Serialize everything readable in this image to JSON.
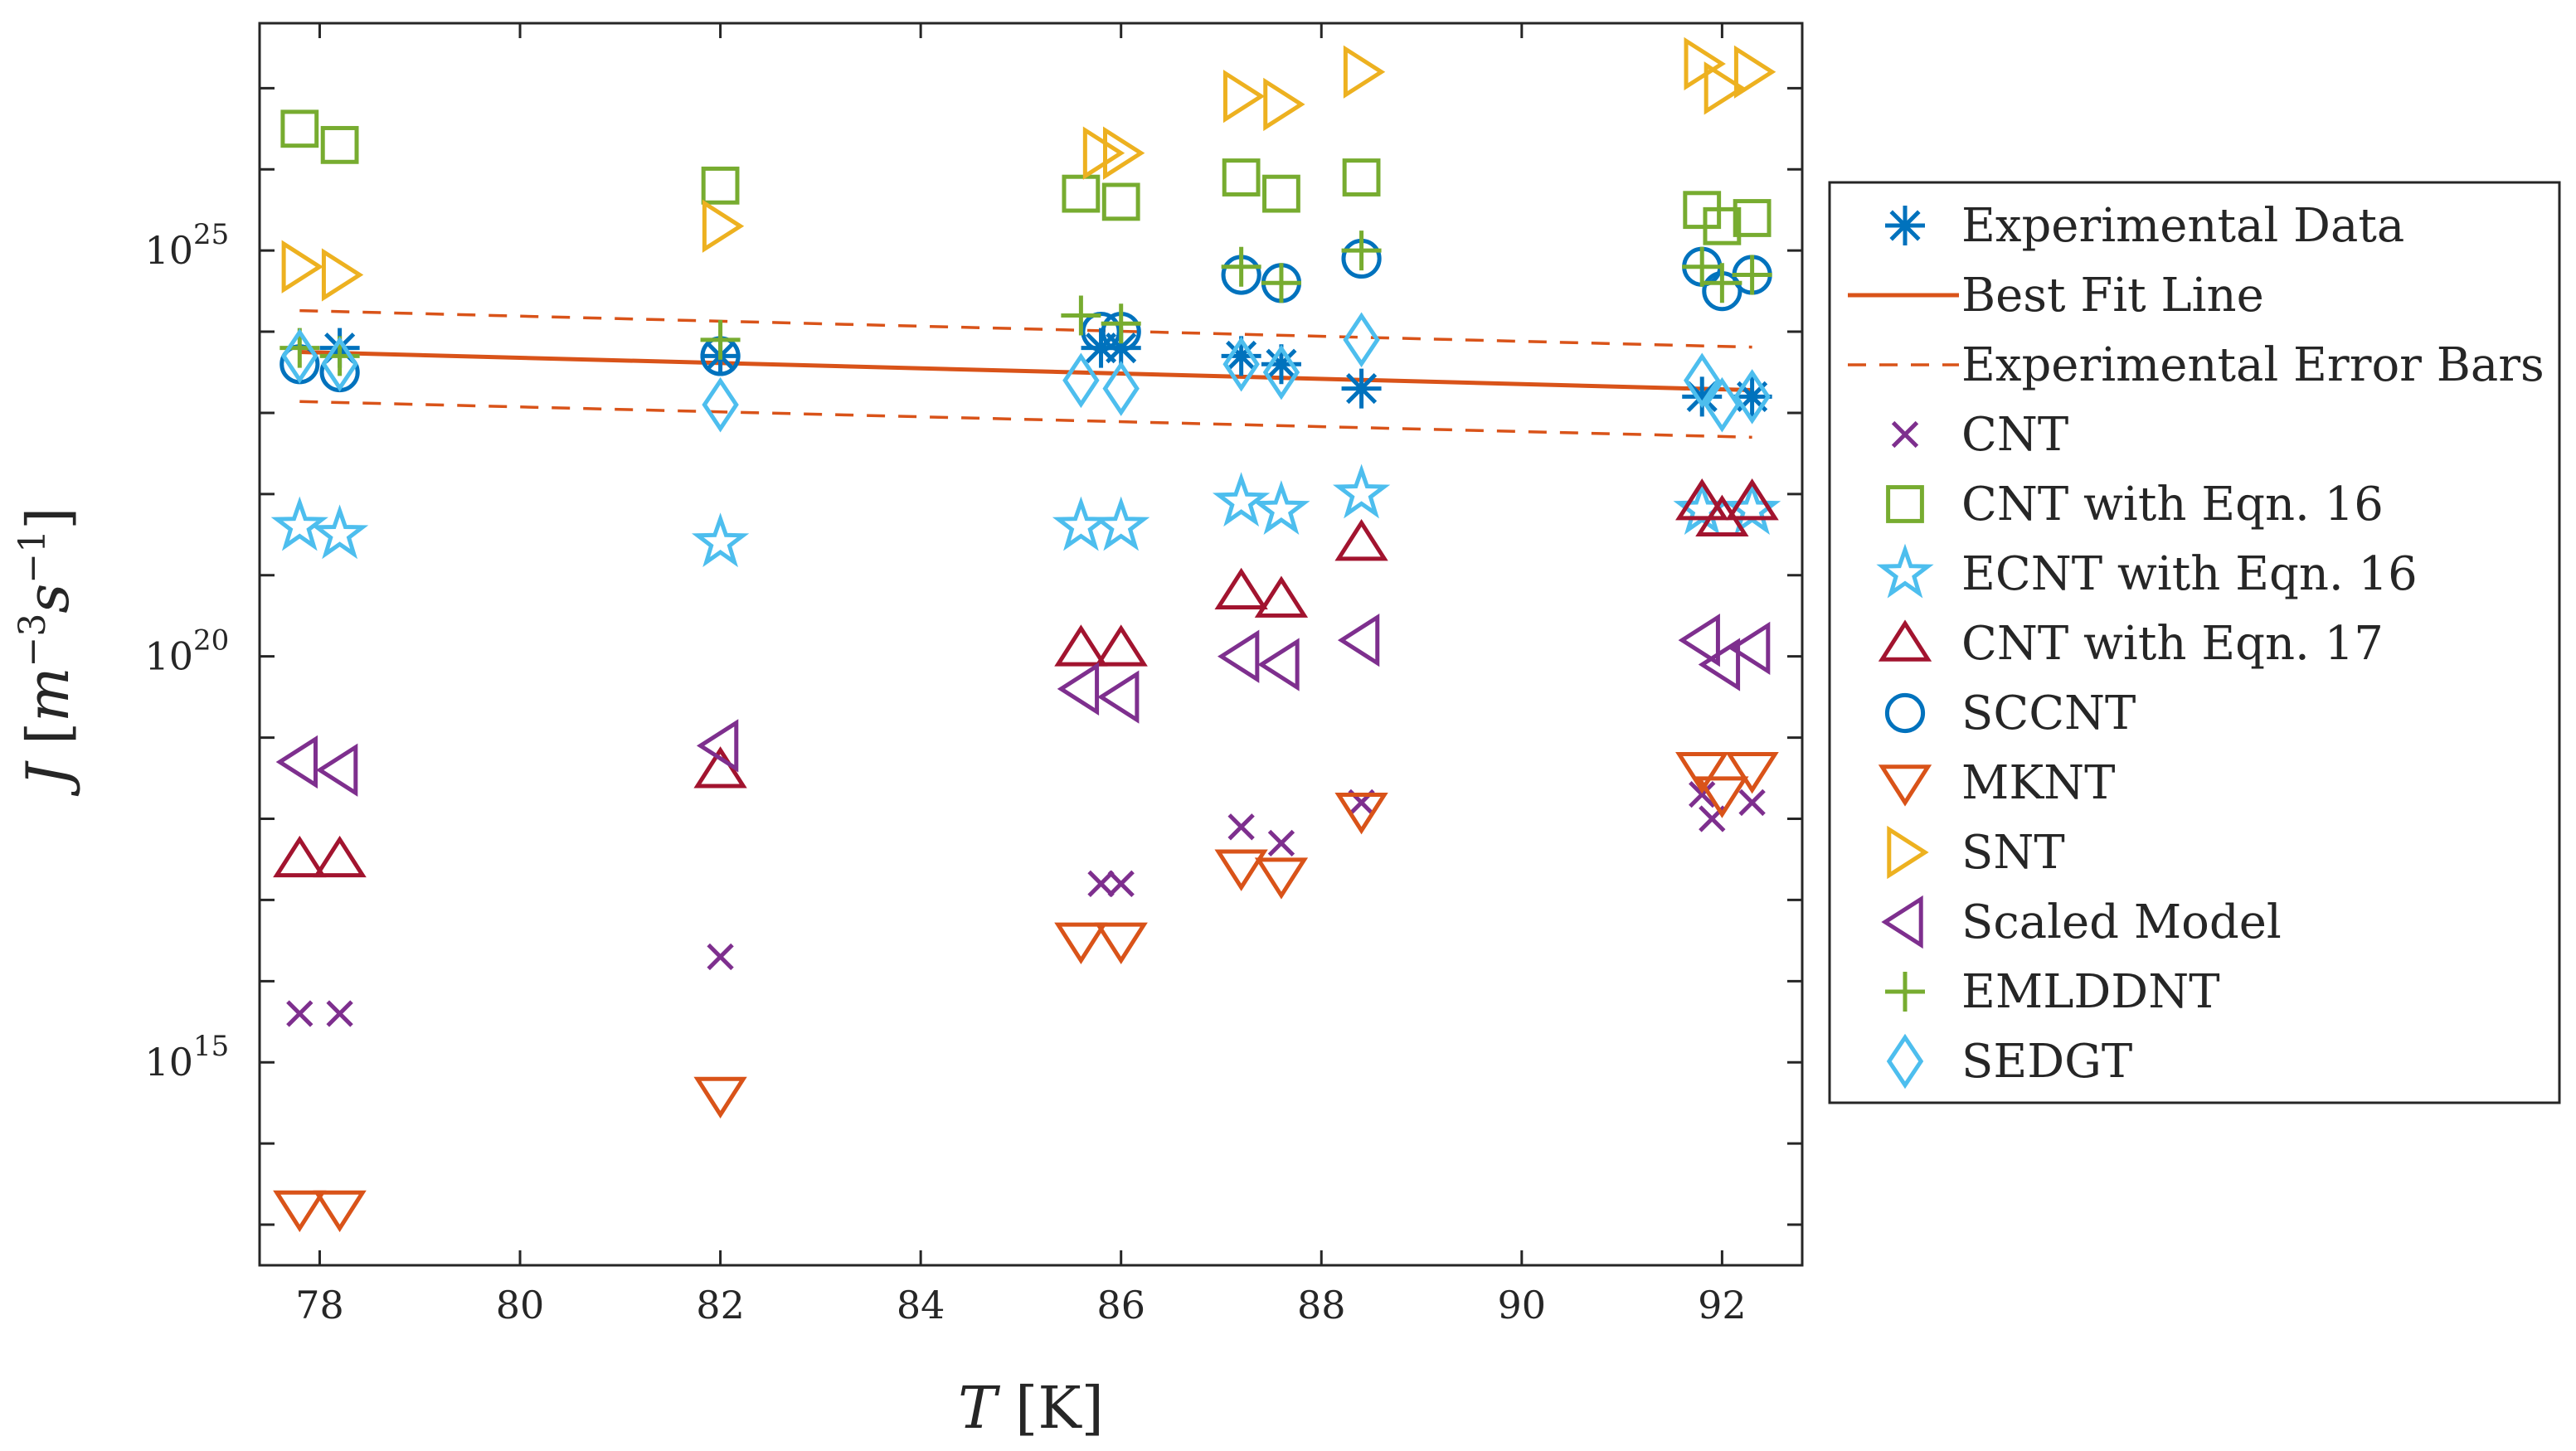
{
  "chart_data": {
    "type": "scatter",
    "title": "",
    "xlabel": "T [K]",
    "ylabel_parts": {
      "var": "J",
      "open": " [",
      "m": "m",
      "m_exp": "−3",
      "s": "s",
      "s_exp": "−1",
      "close": "]"
    },
    "xlim": [
      77.4,
      92.8
    ],
    "ylim_log10": [
      12.5,
      27.8
    ],
    "y_scale": "log",
    "xticks": [
      78,
      80,
      82,
      84,
      86,
      88,
      90,
      92
    ],
    "yticks_labeled": [
      {
        "exp": 15,
        "base": "10",
        "sup": "15"
      },
      {
        "exp": 20,
        "base": "10",
        "sup": "20"
      },
      {
        "exp": 25,
        "base": "10",
        "sup": "25"
      }
    ],
    "legend_position": "outside-right",
    "grid": false,
    "series": [
      {
        "name": "Experimental Data",
        "marker": "asterisk",
        "color": "#0072BD",
        "x": [
          78.2,
          82,
          85.8,
          86,
          87.2,
          87.6,
          88.4,
          91.8,
          92.3
        ],
        "log10_y": [
          23.8,
          23.7,
          23.8,
          23.8,
          23.7,
          23.6,
          23.3,
          23.2,
          23.2
        ]
      },
      {
        "name": "Best Fit Line",
        "line": "solid",
        "color": "#D95319",
        "x": [
          77.8,
          92.3
        ],
        "log10_y": [
          23.75,
          23.28
        ]
      },
      {
        "name": "Experimental Error Bars",
        "line": "dashed",
        "color": "#D95319",
        "upper": {
          "x": [
            77.8,
            92.3
          ],
          "log10_y": [
            24.26,
            23.81
          ]
        },
        "lower": {
          "x": [
            77.8,
            92.3
          ],
          "log10_y": [
            23.14,
            22.7
          ]
        }
      },
      {
        "name": "CNT",
        "marker": "x",
        "color": "#7E2F8E",
        "x": [
          77.8,
          78.2,
          82,
          85.8,
          86,
          87.2,
          87.6,
          88.4,
          91.8,
          92.3,
          91.9
        ],
        "log10_y": [
          15.6,
          15.6,
          16.3,
          17.2,
          17.2,
          17.9,
          17.7,
          18.2,
          18.3,
          18.2,
          18.0
        ]
      },
      {
        "name": "CNT with Eqn. 16",
        "marker": "square",
        "color": "#77AC30",
        "x": [
          77.8,
          78.2,
          82,
          85.6,
          86,
          87.2,
          87.6,
          88.4,
          91.8,
          92.3,
          92.0
        ],
        "log10_y": [
          26.5,
          26.3,
          25.8,
          25.7,
          25.6,
          25.9,
          25.7,
          25.9,
          25.5,
          25.4,
          25.3
        ]
      },
      {
        "name": "ECNT with Eqn. 16",
        "marker": "star",
        "color": "#4DBEEE",
        "x": [
          77.8,
          78.2,
          82,
          85.6,
          86,
          87.2,
          87.6,
          88.4,
          91.8,
          92.3
        ],
        "log10_y": [
          21.6,
          21.5,
          21.4,
          21.6,
          21.6,
          21.9,
          21.8,
          22.0,
          21.8,
          21.8
        ]
      },
      {
        "name": "CNT with Eqn. 17",
        "marker": "triangle-up",
        "color": "#A2142F",
        "x": [
          77.8,
          78.2,
          82,
          85.6,
          86,
          87.2,
          87.6,
          88.4,
          91.8,
          92.3,
          92.0
        ],
        "log10_y": [
          17.5,
          17.5,
          18.6,
          20.1,
          20.1,
          20.8,
          20.7,
          21.4,
          21.9,
          21.9,
          21.7
        ]
      },
      {
        "name": "SCCNT",
        "marker": "circle",
        "color": "#0072BD",
        "x": [
          77.8,
          78.2,
          82,
          85.8,
          86,
          87.2,
          87.6,
          88.4,
          91.8,
          92.3,
          92.0
        ],
        "log10_y": [
          23.6,
          23.5,
          23.7,
          24.0,
          24.0,
          24.7,
          24.6,
          24.9,
          24.8,
          24.7,
          24.5
        ]
      },
      {
        "name": "MKNT",
        "marker": "triangle-down",
        "color": "#D95319",
        "x": [
          77.8,
          78.2,
          82,
          85.6,
          86,
          87.2,
          87.6,
          88.4,
          91.8,
          92.3,
          92.0
        ],
        "log10_y": [
          13.2,
          13.2,
          14.6,
          16.5,
          16.5,
          17.4,
          17.3,
          18.1,
          18.6,
          18.6,
          18.3
        ]
      },
      {
        "name": "SNT",
        "marker": "triangle-right",
        "color": "#EDB120",
        "x": [
          77.8,
          78.2,
          82,
          85.8,
          86,
          87.2,
          87.6,
          88.4,
          91.8,
          92.3,
          92.0
        ],
        "log10_y": [
          24.8,
          24.7,
          25.3,
          26.2,
          26.2,
          26.9,
          26.8,
          27.2,
          27.3,
          27.2,
          27.0
        ]
      },
      {
        "name": "Scaled Model",
        "marker": "triangle-left",
        "color": "#7E2F8E",
        "x": [
          77.8,
          78.2,
          82,
          85.6,
          86,
          87.2,
          87.6,
          88.4,
          91.8,
          92.3,
          92.0
        ],
        "log10_y": [
          18.7,
          18.6,
          18.9,
          19.6,
          19.5,
          20.0,
          19.9,
          20.2,
          20.2,
          20.1,
          19.9
        ]
      },
      {
        "name": "EMLDDNT",
        "marker": "plus",
        "color": "#77AC30",
        "x": [
          77.8,
          78.2,
          82,
          85.6,
          86,
          87.2,
          87.6,
          88.4,
          91.8,
          92.3,
          92.0
        ],
        "log10_y": [
          23.8,
          23.7,
          23.9,
          24.2,
          24.1,
          24.8,
          24.6,
          25.0,
          24.8,
          24.7,
          24.6
        ]
      },
      {
        "name": "SEDGT",
        "marker": "diamond",
        "color": "#4DBEEE",
        "x": [
          77.8,
          78.2,
          82,
          85.6,
          86,
          87.2,
          87.6,
          88.4,
          91.8,
          92.3,
          92.0
        ],
        "log10_y": [
          23.7,
          23.6,
          23.1,
          23.4,
          23.3,
          23.6,
          23.5,
          23.9,
          23.4,
          23.2,
          23.1
        ]
      }
    ]
  }
}
